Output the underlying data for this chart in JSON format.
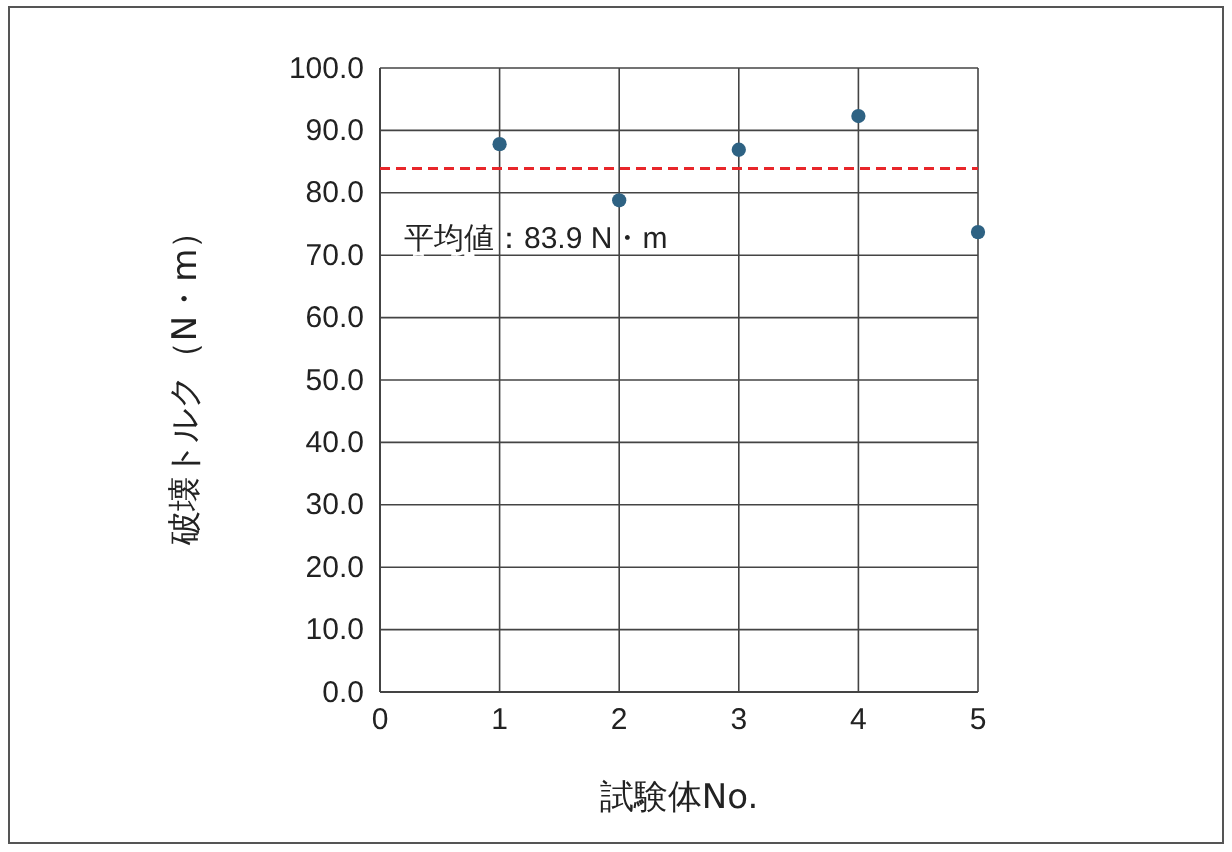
{
  "chart_data": {
    "type": "scatter",
    "xlabel": "試験体No.",
    "ylabel": "破壊トルク（N・m）",
    "x": [
      1,
      2,
      3,
      4,
      5
    ],
    "series": [
      {
        "color": "#2e6283",
        "values": [
          87.8,
          78.8,
          86.9,
          92.3,
          73.7
        ]
      }
    ],
    "xlim": [
      0,
      5
    ],
    "xticks": [
      0,
      1,
      2,
      3,
      4,
      5
    ],
    "ylim": [
      0,
      100
    ],
    "yticks": [
      {
        "value": 0,
        "label": "0.0"
      },
      {
        "value": 10,
        "label": "10.0"
      },
      {
        "value": 20,
        "label": "20.0"
      },
      {
        "value": 30,
        "label": "30.0"
      },
      {
        "value": 40,
        "label": "40.0"
      },
      {
        "value": 50,
        "label": "50.0"
      },
      {
        "value": 60,
        "label": "60.0"
      },
      {
        "value": 70,
        "label": "70.0"
      },
      {
        "value": 80,
        "label": "80.0"
      },
      {
        "value": 90,
        "label": "90.0"
      },
      {
        "value": 100,
        "label": "100.0"
      }
    ],
    "ref_lines": [
      {
        "axis": "y",
        "value": 83.9,
        "label": "平均値：83.9 N・m",
        "color": "#e8262a",
        "line_style": "dashed"
      }
    ],
    "grid": true,
    "marker": "circle"
  }
}
